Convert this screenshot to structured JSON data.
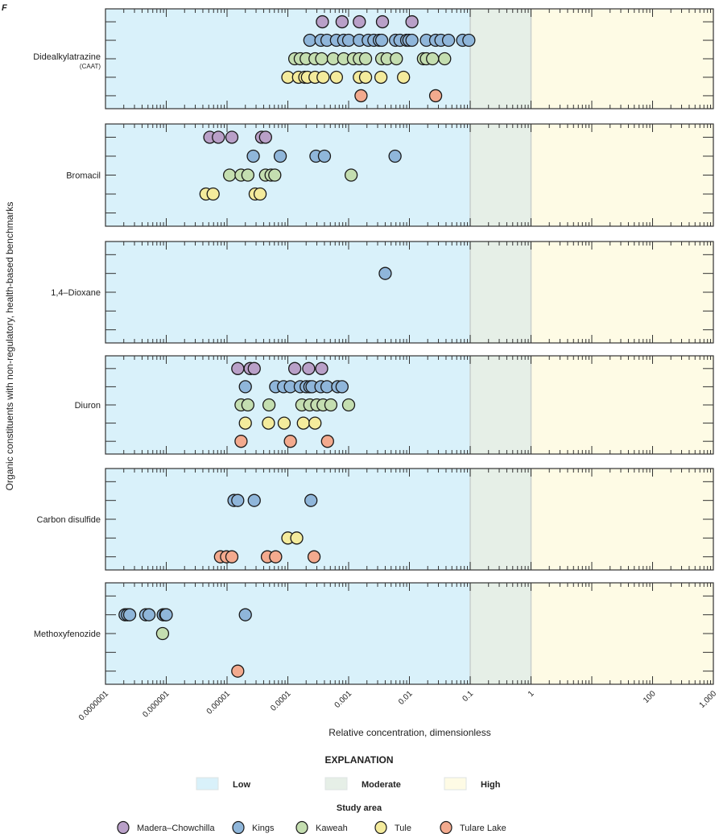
{
  "figure_label": "F",
  "chart_data": {
    "type": "scatter",
    "title": "",
    "xlabel": "Relative concentration, dimensionless",
    "ylabel": "Organic constituents with non-regulatory, health-based benchmarks",
    "xscale": "log",
    "xlim": [
      1e-07,
      1000
    ],
    "x_tick_labels": [
      "0.0000001",
      "0.000001",
      "0.00001",
      "0.0001",
      "0.001",
      "0.01",
      "0.1",
      "1",
      "",
      "100",
      "1,000"
    ],
    "x_tick_values": [
      1e-07,
      1e-06,
      1e-05,
      0.0001,
      0.001,
      0.01,
      0.1,
      1,
      10,
      100,
      1000
    ],
    "bands": [
      {
        "name": "Low",
        "from": 1e-07,
        "to": 0.1,
        "color": "#d9f1fa"
      },
      {
        "name": "Moderate",
        "from": 0.1,
        "to": 1,
        "color": "#e6efe7"
      },
      {
        "name": "High",
        "from": 1,
        "to": 1000,
        "color": "#fefbe5"
      }
    ],
    "study_areas": [
      {
        "name": "Madera–Chowchilla",
        "color": "#b9a0c8"
      },
      {
        "name": "Kings",
        "color": "#8fb6da"
      },
      {
        "name": "Kaweah",
        "color": "#c4deb0"
      },
      {
        "name": "Tule",
        "color": "#f4eb9c"
      },
      {
        "name": "Tulare Lake",
        "color": "#f3aa8e"
      }
    ],
    "panels": [
      {
        "name": "Dideal­kylatrazine",
        "label": "Didealkylatrazine",
        "sublabel": "(CAAT)",
        "series": [
          {
            "area": "Madera–Chowchilla",
            "row": 1,
            "values": [
              0.00037,
              0.00078,
              0.0015,
              0.0036,
              0.011
            ]
          },
          {
            "area": "Kings",
            "row": 2,
            "values": [
              0.00023,
              0.00035,
              0.00044,
              0.00063,
              0.00083,
              0.001,
              0.0015,
              0.0021,
              0.0026,
              0.0032,
              0.0035,
              0.0059,
              0.007,
              0.009,
              0.0098,
              0.011,
              0.019,
              0.027,
              0.033,
              0.044,
              0.075,
              0.095
            ]
          },
          {
            "area": "Kaweah",
            "row": 3,
            "values": [
              0.00013,
              0.00016,
              0.0002,
              0.00028,
              0.00036,
              0.00056,
              0.00083,
              0.0012,
              0.0015,
              0.0019,
              0.0035,
              0.0043,
              0.0061,
              0.017,
              0.019,
              0.024,
              0.038
            ]
          },
          {
            "area": "Tule",
            "row": 4,
            "values": [
              0.0001,
              0.00015,
              0.00019,
              0.00021,
              0.00028,
              0.00038,
              0.00063,
              0.0015,
              0.0019,
              0.0034,
              0.008
            ]
          },
          {
            "area": "Tulare Lake",
            "row": 5,
            "values": [
              0.0016,
              0.027
            ]
          }
        ]
      },
      {
        "label": "Bromacil",
        "sublabel": "",
        "series": [
          {
            "area": "Madera–Chowchilla",
            "row": 1,
            "values": [
              5.2e-06,
              7.2e-06,
              1.2e-05,
              3.7e-05,
              4.3e-05
            ]
          },
          {
            "area": "Kings",
            "row": 2,
            "values": [
              2.7e-05,
              7.5e-05,
              0.00029,
              0.0004,
              0.0058
            ]
          },
          {
            "area": "Kaweah",
            "row": 3,
            "values": [
              1.1e-05,
              1.7e-05,
              2.2e-05,
              4.3e-05,
              5.3e-05,
              6.1e-05,
              0.0011
            ]
          },
          {
            "area": "Tule",
            "row": 4,
            "values": [
              4.5e-06,
              5.9e-06,
              2.9e-05,
              3.5e-05
            ]
          }
        ]
      },
      {
        "label": "1,4–Dioxane",
        "sublabel": "",
        "series": [
          {
            "area": "Kings",
            "row": 2,
            "values": [
              0.004
            ]
          }
        ]
      },
      {
        "label": "Diuron",
        "sublabel": "",
        "series": [
          {
            "area": "Madera–Chowchilla",
            "row": 1,
            "values": [
              1.5e-05,
              2.4e-05,
              2.8e-05,
              0.00013,
              0.00022,
              0.00036
            ]
          },
          {
            "area": "Kings",
            "row": 2,
            "values": [
              2e-05,
              6.3e-05,
              8.5e-05,
              0.00011,
              0.00016,
              0.0002,
              0.00023,
              0.00025,
              0.00035,
              0.00044,
              0.00066,
              0.00078
            ]
          },
          {
            "area": "Kaweah",
            "row": 3,
            "values": [
              1.7e-05,
              2.2e-05,
              4.9e-05,
              0.00017,
              0.00023,
              0.0003,
              0.00038,
              0.00051,
              0.001
            ]
          },
          {
            "area": "Tule",
            "row": 4,
            "values": [
              2e-05,
              4.8e-05,
              8.7e-05,
              0.00018,
              0.00028
            ]
          },
          {
            "area": "Tulare Lake",
            "row": 5,
            "values": [
              1.7e-05,
              0.00011,
              0.00045
            ]
          }
        ]
      },
      {
        "label": "Carbon disulfide",
        "sublabel": "",
        "series": [
          {
            "area": "Kings",
            "row": 2,
            "values": [
              1.3e-05,
              1.5e-05,
              2.8e-05,
              0.00024
            ]
          },
          {
            "area": "Tule",
            "row": 4,
            "values": [
              0.0001,
              0.00014
            ]
          },
          {
            "area": "Tulare Lake",
            "row": 5,
            "values": [
              7.8e-06,
              9.8e-06,
              1.2e-05,
              4.6e-05,
              6.3e-05,
              0.00027
            ]
          }
        ]
      },
      {
        "label": "Methoxyfenozide",
        "sublabel": "",
        "series": [
          {
            "area": "Kings",
            "row": 2,
            "values": [
              2.1e-07,
              2.3e-07,
              2.5e-07,
              4.6e-07,
              5.2e-07,
              8.9e-07,
              9.7e-07,
              1e-06,
              2e-05
            ]
          },
          {
            "area": "Kaweah",
            "row": 3,
            "values": [
              8.7e-07
            ]
          },
          {
            "area": "Tulare Lake",
            "row": 5,
            "values": [
              1.5e-05
            ]
          }
        ]
      }
    ],
    "legend": {
      "title": "EXPLANATION",
      "bands_title": "",
      "study_area_title": "Study area",
      "placement": "bottom"
    },
    "grid": false
  }
}
